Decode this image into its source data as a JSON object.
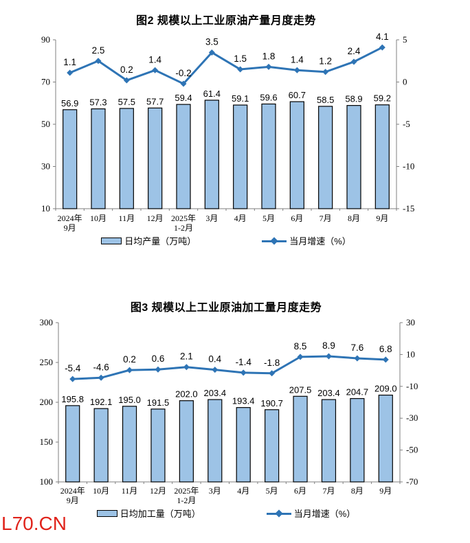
{
  "page": {
    "watermark": "L70.CN",
    "watermark_color": "#e0231b",
    "background": "#ffffff"
  },
  "chart_data": [
    {
      "type": "bar",
      "subtype": "bar-line-combo",
      "title": "图2 规模以上工业原油产量月度走势",
      "categories": [
        "2024年9月",
        "10月",
        "11月",
        "12月",
        "2025年1-2月",
        "3月",
        "4月",
        "5月",
        "6月",
        "7月",
        "8月",
        "9月"
      ],
      "categories_display": [
        [
          "2024年",
          "9月"
        ],
        [
          "10月"
        ],
        [
          "11月"
        ],
        [
          "12月"
        ],
        [
          "2025年",
          "1-2月"
        ],
        [
          "3月"
        ],
        [
          "4月"
        ],
        [
          "5月"
        ],
        [
          "6月"
        ],
        [
          "7月"
        ],
        [
          "8月"
        ],
        [
          "9月"
        ]
      ],
      "series": [
        {
          "name": "日均产量（万吨）",
          "type": "bar",
          "axis": "left",
          "values": [
            56.9,
            57.3,
            57.5,
            57.7,
            59.4,
            61.4,
            59.1,
            59.6,
            60.7,
            58.5,
            58.9,
            59.2
          ]
        },
        {
          "name": "当月增速（%）",
          "type": "line",
          "axis": "right",
          "values": [
            1.1,
            2.5,
            0.2,
            1.4,
            -0.2,
            3.5,
            1.5,
            1.8,
            1.4,
            1.2,
            2.4,
            4.1
          ]
        }
      ],
      "left_axis": {
        "min": 10,
        "max": 90,
        "ticks": [
          90,
          70,
          50,
          30,
          10
        ]
      },
      "right_axis": {
        "min": -15,
        "max": 5,
        "ticks": [
          5,
          0,
          -5,
          -10,
          -15
        ]
      },
      "legend_position": "bottom",
      "grid": false,
      "colors": {
        "bar_fill": "#9dc3e6",
        "bar_border": "#000000",
        "line": "#2e74b5",
        "axis": "#7f7f7f",
        "label": "#000000"
      }
    },
    {
      "type": "bar",
      "subtype": "bar-line-combo",
      "title": "图3 规模以上工业原油加工量月度走势",
      "categories": [
        "2024年9月",
        "10月",
        "11月",
        "12月",
        "2025年1-2月",
        "3月",
        "4月",
        "5月",
        "6月",
        "7月",
        "8月",
        "9月"
      ],
      "categories_display": [
        [
          "2024年",
          "9月"
        ],
        [
          "10月"
        ],
        [
          "11月"
        ],
        [
          "12月"
        ],
        [
          "2025年",
          "1-2月"
        ],
        [
          "3月"
        ],
        [
          "4月"
        ],
        [
          "5月"
        ],
        [
          "6月"
        ],
        [
          "7月"
        ],
        [
          "8月"
        ],
        [
          "9月"
        ]
      ],
      "series": [
        {
          "name": "日均加工量（万吨）",
          "type": "bar",
          "axis": "left",
          "values": [
            195.8,
            192.1,
            195.0,
            191.5,
            202.0,
            203.4,
            193.4,
            190.7,
            207.5,
            203.4,
            204.7,
            209.0
          ]
        },
        {
          "name": "当月增速（%）",
          "type": "line",
          "axis": "right",
          "values": [
            -5.4,
            -4.6,
            0.2,
            0.6,
            2.1,
            0.4,
            -1.4,
            -1.8,
            8.5,
            8.9,
            7.6,
            6.8
          ]
        }
      ],
      "left_axis": {
        "min": 100,
        "max": 300,
        "ticks": [
          300,
          250,
          200,
          150,
          100
        ]
      },
      "right_axis": {
        "min": -70,
        "max": 30,
        "ticks": [
          30,
          10,
          -10,
          -30,
          -50,
          -70
        ]
      },
      "legend_position": "bottom",
      "grid": false,
      "colors": {
        "bar_fill": "#9dc3e6",
        "bar_border": "#000000",
        "line": "#2e74b5",
        "axis": "#7f7f7f",
        "label": "#000000"
      }
    }
  ]
}
